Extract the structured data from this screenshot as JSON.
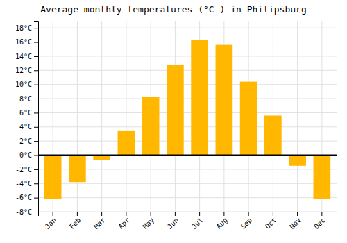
{
  "chart_data": {
    "type": "bar",
    "title": "Average monthly temperatures (°C ) in Philipsburg",
    "categories": [
      "Jan",
      "Feb",
      "Mar",
      "Apr",
      "May",
      "Jun",
      "Jul",
      "Aug",
      "Sep",
      "Oct",
      "Nov",
      "Dec"
    ],
    "values": [
      -6.2,
      -3.8,
      -0.7,
      3.5,
      8.3,
      12.8,
      16.3,
      15.6,
      10.4,
      5.6,
      -1.5,
      -6.2
    ],
    "color": "#FFB700",
    "ylim": [
      -8,
      19
    ],
    "yticks": [
      {
        "value": -8,
        "label": "-8°C"
      },
      {
        "value": -6,
        "label": "-6°C"
      },
      {
        "value": -4,
        "label": "-4°C"
      },
      {
        "value": -2,
        "label": "-2°C"
      },
      {
        "value": 0,
        "label": "0°C"
      },
      {
        "value": 2,
        "label": "2°C"
      },
      {
        "value": 4,
        "label": "4°C"
      },
      {
        "value": 6,
        "label": "6°C"
      },
      {
        "value": 8,
        "label": "8°C"
      },
      {
        "value": 10,
        "label": "10°C"
      },
      {
        "value": 12,
        "label": "12°C"
      },
      {
        "value": 14,
        "label": "14°C"
      },
      {
        "value": 16,
        "label": "16°C"
      },
      {
        "value": 18,
        "label": "18°C"
      }
    ],
    "grid": true
  }
}
